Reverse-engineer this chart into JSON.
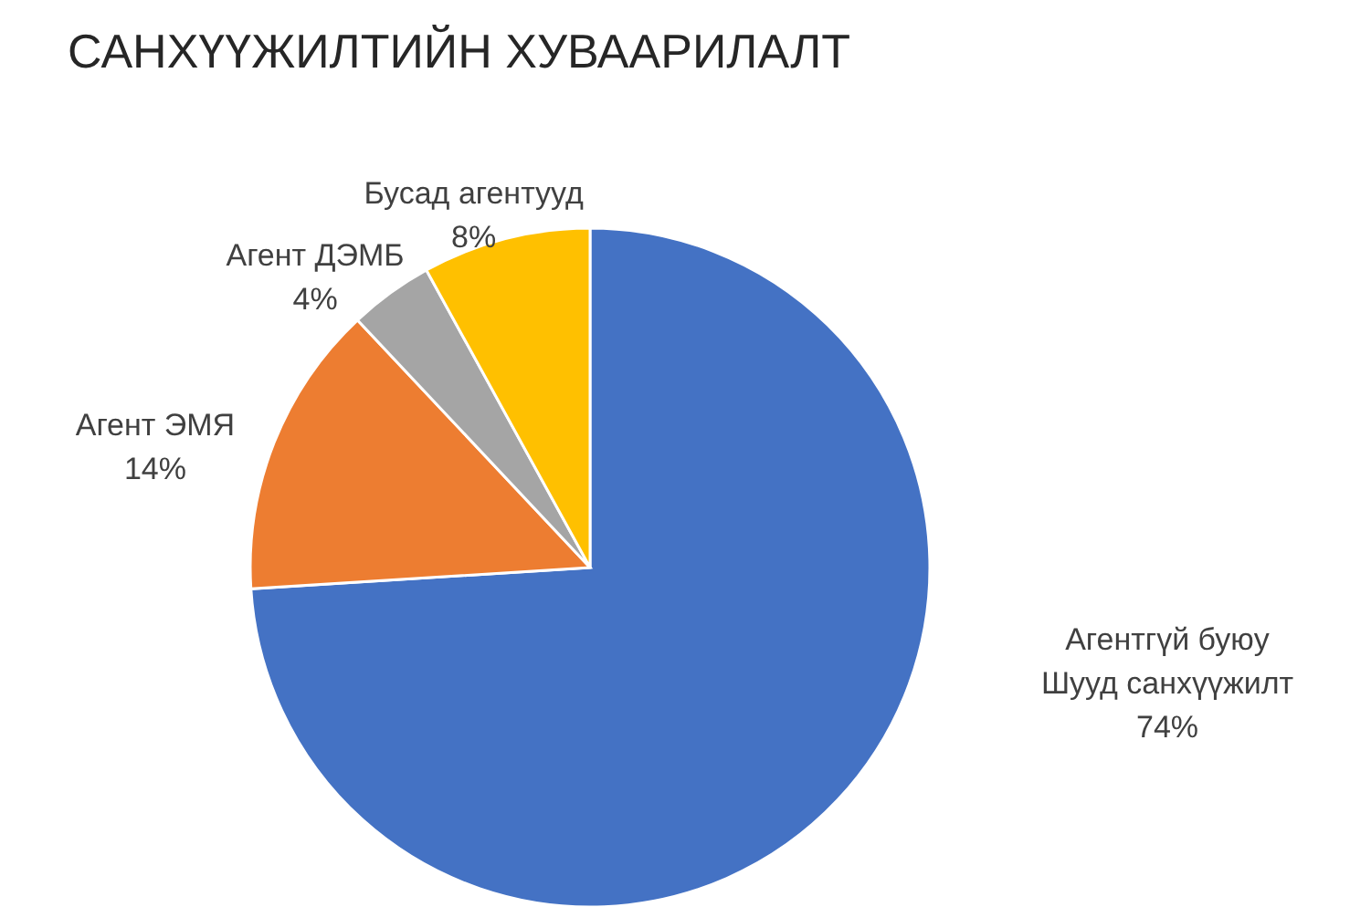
{
  "chart_data": {
    "type": "pie",
    "title": "САНХҮҮЖИЛТИЙН ХУВААРИЛАЛТ",
    "categories": [
      "Агентгүй буюу Шууд санхүүжилт",
      "Агент ЭМЯ",
      "Агент ДЭМБ",
      "Бусад агентууд"
    ],
    "values": [
      74,
      14,
      4,
      8
    ],
    "colors": [
      "#4472c4",
      "#ed7d31",
      "#a5a5a5",
      "#ffc000"
    ],
    "value_labels": [
      "74%",
      "14%",
      "4%",
      "8%"
    ]
  }
}
